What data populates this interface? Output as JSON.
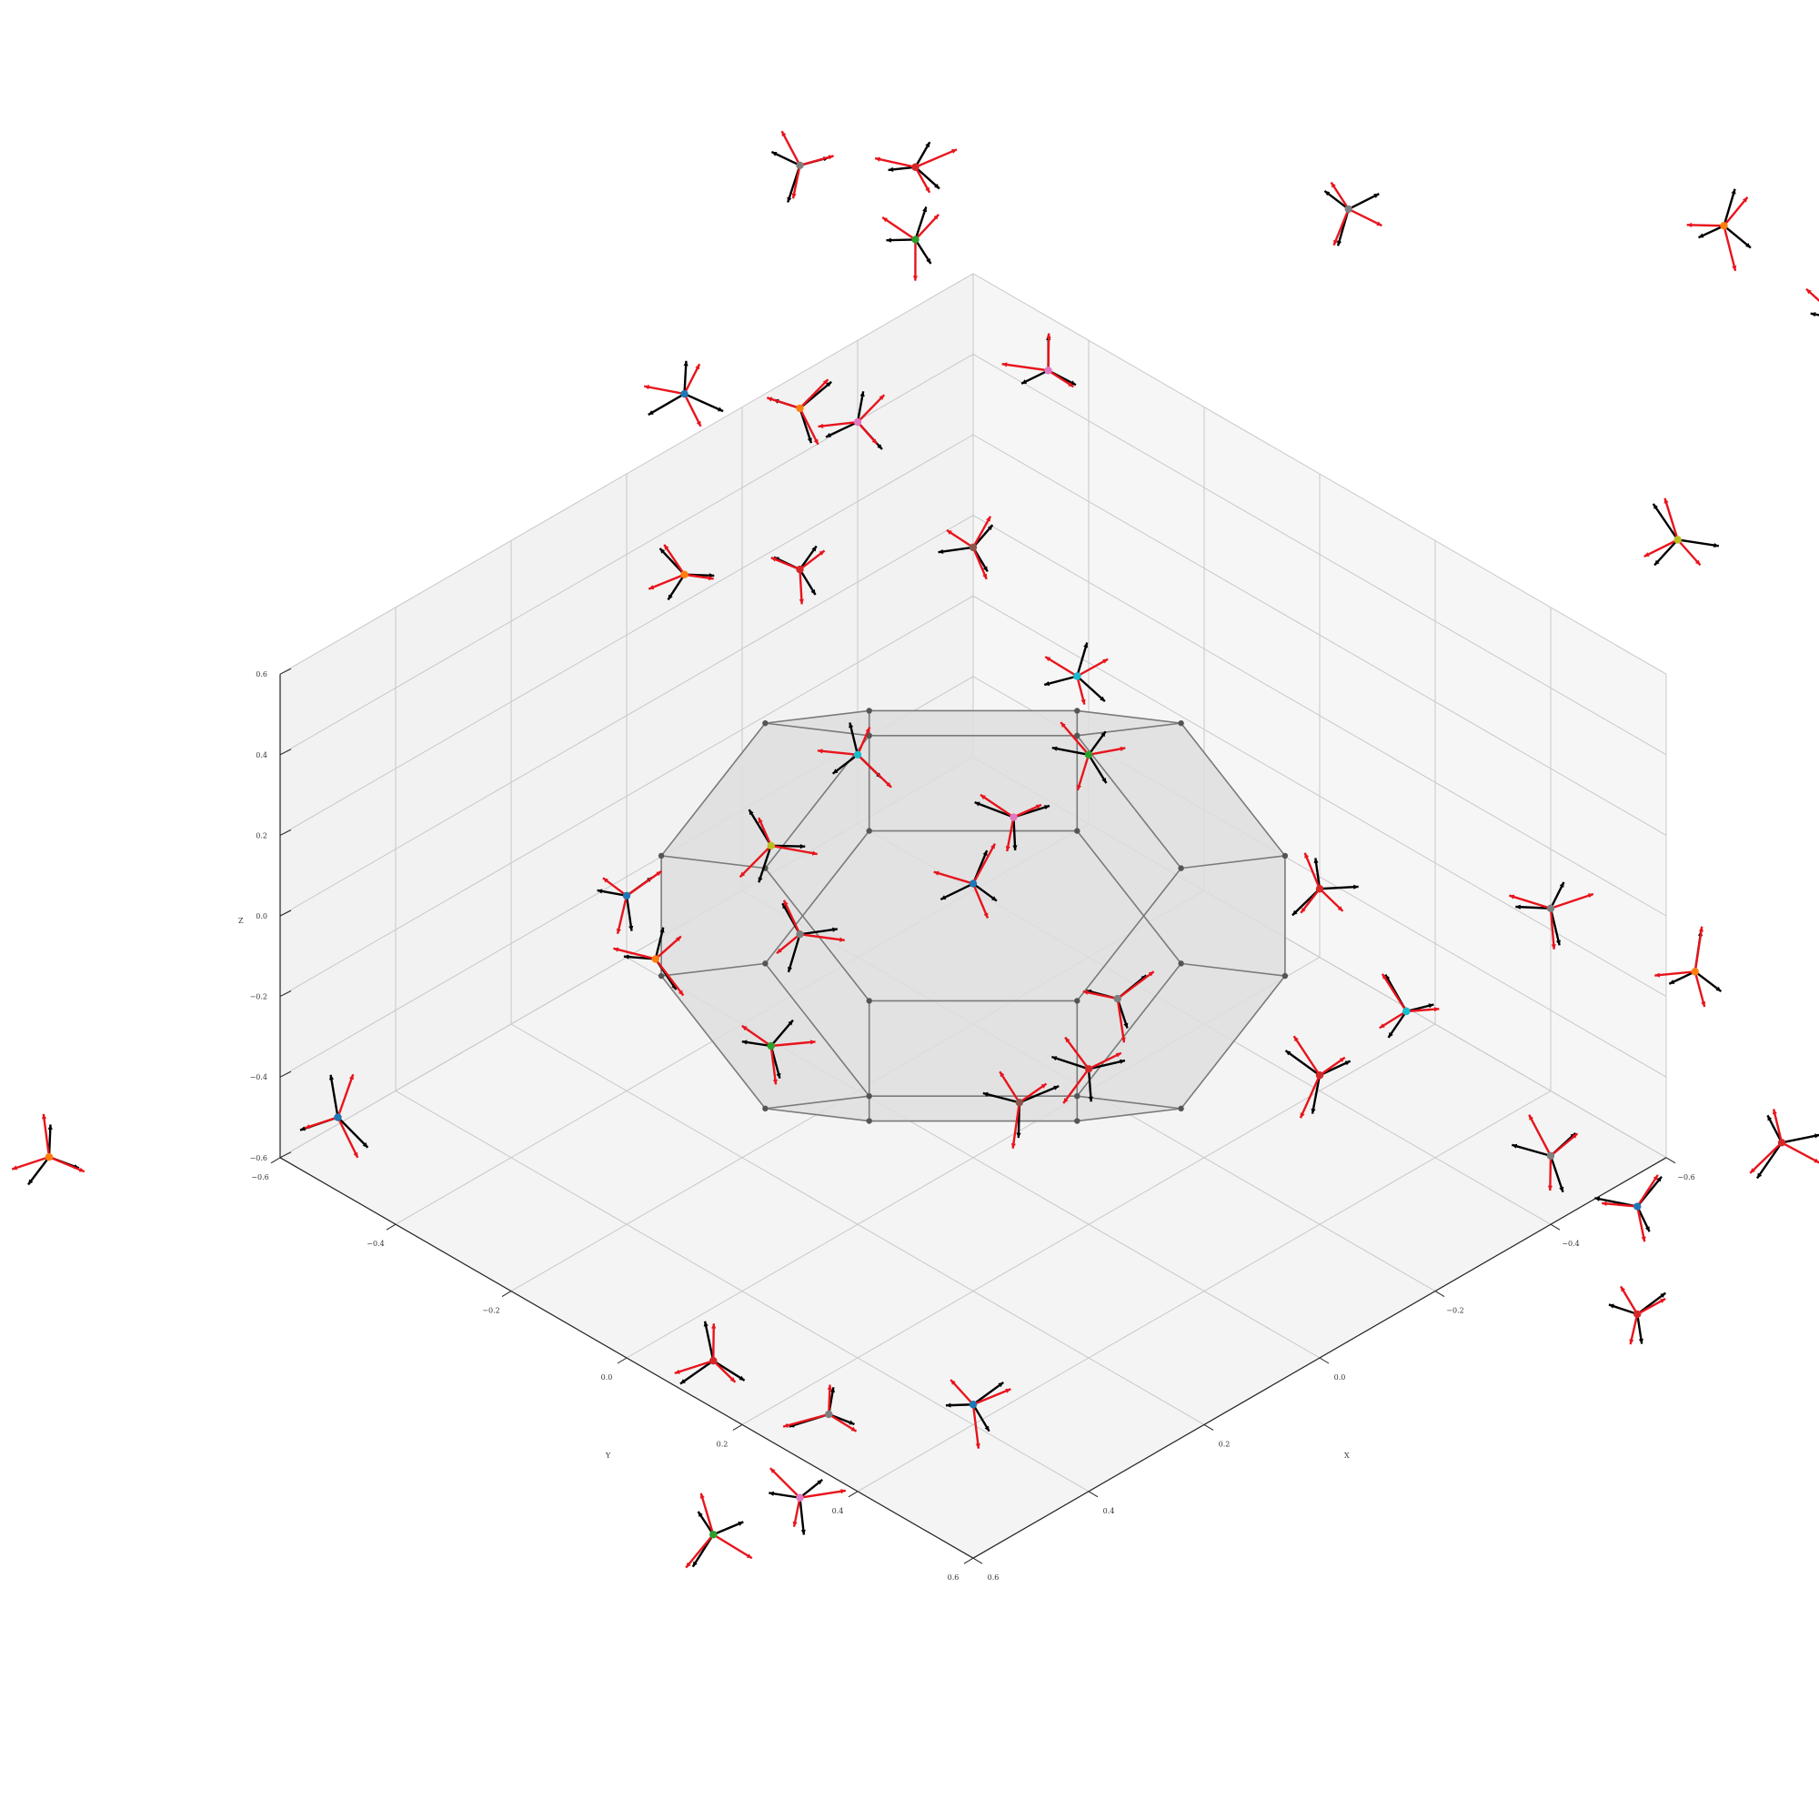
{
  "chart_data": {
    "type": "scatter",
    "projection": "3d",
    "title": "",
    "axes": {
      "x": {
        "label": "X",
        "range": [
          -0.6,
          0.6
        ],
        "ticks": [
          "−0.6",
          "−0.4",
          "−0.2",
          "0.0",
          "0.2",
          "0.4",
          "0.6"
        ]
      },
      "y": {
        "label": "Y",
        "range": [
          -0.6,
          0.6
        ],
        "ticks": [
          "−0.6",
          "−0.4",
          "−0.2",
          "0.0",
          "0.2",
          "0.4",
          "0.6"
        ]
      },
      "z": {
        "label": "Z",
        "range": [
          -0.6,
          0.6
        ],
        "ticks": [
          "−0.6",
          "−0.4",
          "−0.2",
          "0.0",
          "0.2",
          "0.4",
          "0.6"
        ]
      }
    },
    "grid": true,
    "legend": "none",
    "view": {
      "elevation_deg": 35,
      "azimuth_deg": 45
    },
    "colors": {
      "pane_left": "#f2f2f2",
      "pane_right": "#f6f6f6",
      "pane_floor": "#f4f4f4",
      "grid": "#c8c8c8",
      "solid_face": "#dedede",
      "solid_edge": "#7a7a7a",
      "vertex": "#555555",
      "frame_pred": "#e8141c",
      "frame_gt": "#000000"
    },
    "solid": {
      "name": "truncated octahedron",
      "vertex_rule": "all permutations of (0, ±0.18, ±0.36)"
    },
    "series": [
      {
        "name": "",
        "points": [
          [
            0.36,
            0.18,
            0.0
          ],
          [
            0.36,
            -0.18,
            0.0
          ],
          [
            0.36,
            0.0,
            0.18
          ],
          [
            0.36,
            0.0,
            -0.18
          ],
          [
            -0.36,
            0.18,
            0.0
          ],
          [
            -0.36,
            -0.18,
            0.0
          ],
          [
            -0.36,
            0.0,
            0.18
          ],
          [
            -0.36,
            0.0,
            -0.18
          ],
          [
            0.18,
            0.36,
            0.0
          ],
          [
            -0.18,
            0.36,
            0.0
          ],
          [
            0.0,
            0.36,
            0.18
          ],
          [
            0.0,
            0.36,
            -0.18
          ],
          [
            0.18,
            -0.36,
            0.0
          ],
          [
            -0.18,
            -0.36,
            0.0
          ],
          [
            0.0,
            -0.36,
            0.18
          ],
          [
            0.0,
            -0.36,
            -0.18
          ],
          [
            0.18,
            0.0,
            0.36
          ],
          [
            -0.18,
            0.0,
            0.36
          ],
          [
            0.0,
            0.18,
            0.36
          ],
          [
            0.0,
            -0.18,
            0.36
          ],
          [
            0.18,
            0.0,
            -0.36
          ],
          [
            -0.18,
            0.0,
            -0.36
          ],
          [
            0.0,
            0.18,
            -0.36
          ],
          [
            0.0,
            -0.18,
            -0.36
          ]
        ]
      }
    ],
    "frames": [
      {
        "color": "#2ca02c",
        "p": [
          -0.45,
          -0.55,
          0.85
        ]
      },
      {
        "color": "#e377c2",
        "p": [
          -0.55,
          -0.42,
          0.55
        ]
      },
      {
        "color": "#7f7f7f",
        "p": [
          -0.75,
          -0.1,
          1.05
        ]
      },
      {
        "color": "#1f77b4",
        "p": [
          -0.2,
          -0.7,
          0.55
        ]
      },
      {
        "color": "#ff7f0e",
        "p": [
          -1.05,
          0.25,
          1.05
        ]
      },
      {
        "color": "#17becf",
        "p": [
          -0.95,
          0.55,
          1.15
        ]
      },
      {
        "color": "#8c564b",
        "p": [
          -1.2,
          0.7,
          1.1
        ]
      },
      {
        "color": "#bcbd22",
        "p": [
          -0.6,
          0.62,
          0.95
        ]
      },
      {
        "color": "#d62728",
        "p": [
          -0.25,
          0.35,
          0.15
        ]
      },
      {
        "color": "#8c564b",
        "p": [
          -0.22,
          -0.22,
          0.55
        ]
      },
      {
        "color": "#17becf",
        "p": [
          -0.28,
          -0.1,
          0.28
        ]
      },
      {
        "color": "#e377c2",
        "p": [
          -0.05,
          0.02,
          0.22
        ]
      },
      {
        "color": "#1f77b4",
        "p": [
          0.0,
          0.0,
          0.08
        ]
      },
      {
        "color": "#bcbd22",
        "p": [
          0.1,
          -0.25,
          0.05
        ]
      },
      {
        "color": "#7f7f7f",
        "p": [
          0.25,
          -0.05,
          0.12
        ]
      },
      {
        "color": "#ff7f0e",
        "p": [
          -0.05,
          -0.55,
          0.35
        ]
      },
      {
        "color": "#7f7f7f",
        "p": [
          0.15,
          0.4,
          0.25
        ]
      },
      {
        "color": "#1f77b4",
        "p": [
          0.3,
          -0.3,
          0.05
        ]
      },
      {
        "color": "#2ca02c",
        "p": [
          0.4,
          0.05,
          0.05
        ]
      },
      {
        "color": "#8c564b",
        "p": [
          0.3,
          0.38,
          0.1
        ]
      },
      {
        "color": "#ff7f0e",
        "p": [
          0.4,
          -0.15,
          0.1
        ]
      },
      {
        "color": "#d62728",
        "p": [
          0.25,
          0.45,
          0.2
        ]
      },
      {
        "color": "#2ca02c",
        "p": [
          -0.1,
          0.1,
          0.4
        ]
      },
      {
        "color": "#17becf",
        "p": [
          0.1,
          -0.1,
          0.4
        ]
      },
      {
        "color": "#e377c2",
        "p": [
          -0.7,
          -0.9,
          -0.1
        ]
      },
      {
        "color": "#d62728",
        "p": [
          -0.8,
          -0.9,
          0.45
        ]
      },
      {
        "color": "#ff7f0e",
        "p": [
          -0.55,
          -0.85,
          0.1
        ]
      },
      {
        "color": "#7f7f7f",
        "p": [
          -0.6,
          -0.9,
          0.62
        ]
      },
      {
        "color": "#d62728",
        "p": [
          -0.55,
          -0.85,
          -0.3
        ]
      },
      {
        "color": "#1f77b4",
        "p": [
          0.85,
          -0.95,
          -0.3
        ]
      },
      {
        "color": "#e377c2",
        "p": [
          1.05,
          -0.85,
          -0.3
        ]
      },
      {
        "color": "#ff7f0e",
        "p": [
          0.95,
          -0.65,
          -0.35
        ]
      },
      {
        "color": "#1f77b4",
        "p": [
          0.55,
          -0.55,
          -0.5
        ]
      },
      {
        "color": "#d62728",
        "p": [
          0.65,
          0.2,
          -0.4
        ]
      },
      {
        "color": "#1f77b4",
        "p": [
          0.4,
          0.4,
          -0.55
        ]
      },
      {
        "color": "#7f7f7f",
        "p": [
          0.6,
          0.35,
          -0.45
        ]
      },
      {
        "color": "#e377c2",
        "p": [
          0.75,
          0.45,
          -0.45
        ]
      },
      {
        "color": "#2ca02c",
        "p": [
          0.85,
          0.4,
          -0.5
        ]
      },
      {
        "color": "#7f7f7f",
        "p": [
          -0.05,
          0.95,
          0.15
        ]
      },
      {
        "color": "#d62728",
        "p": [
          -0.3,
          1.1,
          0.1
        ]
      },
      {
        "color": "#1f77b4",
        "p": [
          -0.2,
          0.95,
          -0.1
        ]
      },
      {
        "color": "#d62728",
        "p": [
          -0.25,
          0.9,
          -0.45
        ]
      },
      {
        "color": "#ff7f0e",
        "p": [
          -0.3,
          0.95,
          0.4
        ]
      },
      {
        "color": "#7f7f7f",
        "p": [
          -0.3,
          0.7,
          0.35
        ]
      },
      {
        "color": "#d62728",
        "p": [
          0.15,
          0.75,
          0.35
        ]
      },
      {
        "color": "#17becf",
        "p": [
          0.1,
          0.85,
          0.55
        ]
      }
    ]
  }
}
